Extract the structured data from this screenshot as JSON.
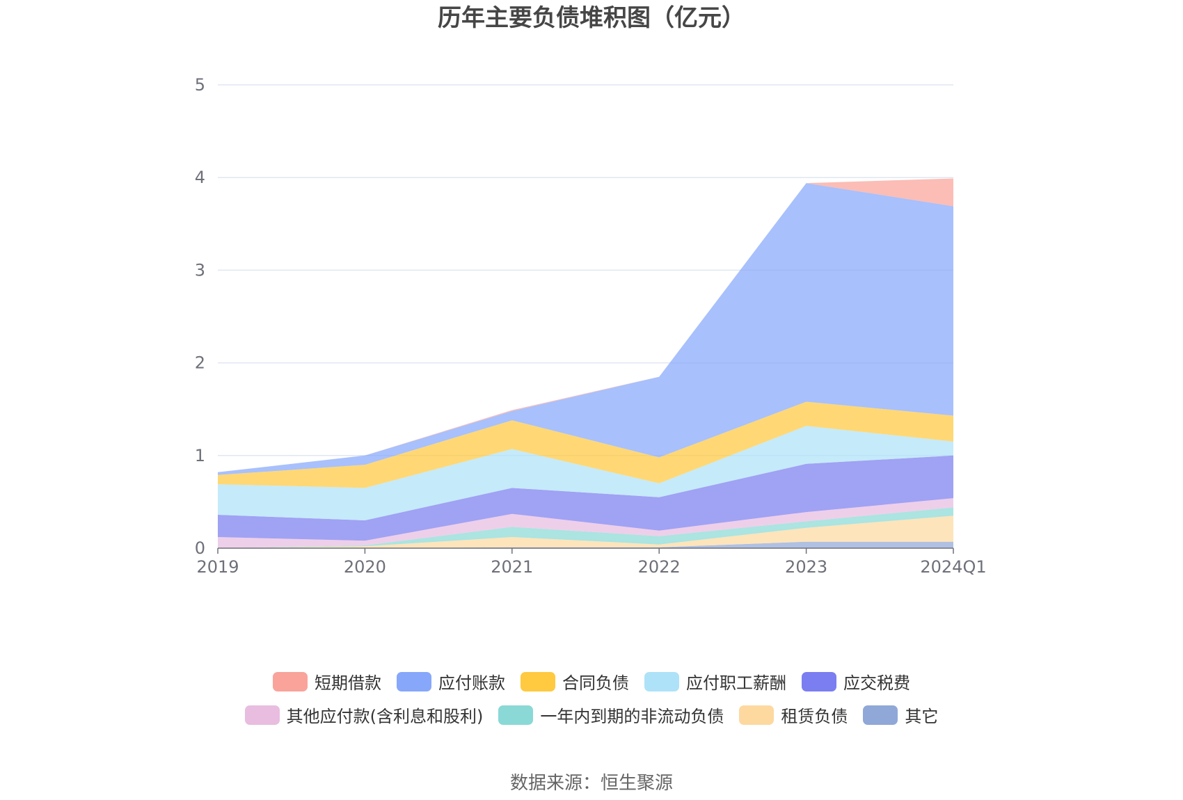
{
  "title": "历年主要负债堆积图（亿元）",
  "source": "数据来源：恒生聚源",
  "chart_data": {
    "type": "area",
    "stacked": true,
    "categories": [
      "2019",
      "2020",
      "2021",
      "2022",
      "2023",
      "2024Q1"
    ],
    "y_ticks": [
      "0",
      "1",
      "2",
      "3",
      "4",
      "5"
    ],
    "ylim": [
      0,
      5
    ],
    "grid": true,
    "legend_position": "bottom",
    "series": [
      {
        "name": "其它",
        "color": "#90a8d8",
        "values": [
          0.0,
          0.0,
          0.01,
          0.01,
          0.07,
          0.07
        ]
      },
      {
        "name": "租赁负债",
        "color": "#fdd9a0",
        "values": [
          0.0,
          0.02,
          0.11,
          0.03,
          0.15,
          0.28
        ]
      },
      {
        "name": "一年内到期的非流动负债",
        "color": "#8ad9d6",
        "values": [
          0.0,
          0.01,
          0.11,
          0.09,
          0.07,
          0.09
        ]
      },
      {
        "name": "其他应付款(含利息和股利)",
        "color": "#e8bde0",
        "values": [
          0.12,
          0.05,
          0.14,
          0.06,
          0.1,
          0.1
        ]
      },
      {
        "name": "应交税费",
        "color": "#7b7ef0",
        "values": [
          0.24,
          0.22,
          0.28,
          0.36,
          0.52,
          0.46
        ]
      },
      {
        "name": "应付职工薪酬",
        "color": "#aee2f8",
        "values": [
          0.33,
          0.35,
          0.42,
          0.15,
          0.41,
          0.15
        ]
      },
      {
        "name": "合同负债",
        "color": "#ffc940",
        "values": [
          0.1,
          0.25,
          0.31,
          0.28,
          0.26,
          0.28
        ]
      },
      {
        "name": "应付账款",
        "color": "#87a7fb",
        "values": [
          0.03,
          0.1,
          0.1,
          0.87,
          2.36,
          2.26
        ]
      },
      {
        "name": "短期借款",
        "color": "#f9a39a",
        "values": [
          0.0,
          0.0,
          0.01,
          0.0,
          0.0,
          0.3
        ]
      }
    ],
    "legend_rows": [
      [
        "短期借款",
        "应付账款",
        "合同负债",
        "应付职工薪酬",
        "应交税费"
      ],
      [
        "其他应付款(含利息和股利)",
        "一年内到期的非流动负债",
        "租赁负债",
        "其它"
      ]
    ]
  }
}
